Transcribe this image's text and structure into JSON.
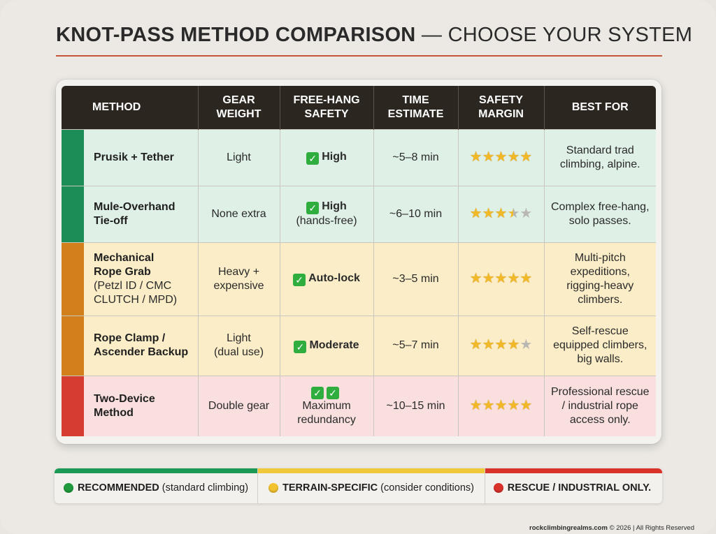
{
  "title": {
    "bold": "KNOT-PASS METHOD COMPARISON",
    "separator": " — ",
    "light": "CHOOSE YOUR SYSTEM"
  },
  "headers": {
    "method": "METHOD",
    "gear_weight_1": "GEAR",
    "gear_weight_2": "WEIGHT",
    "free_hang_1": "FREE-HANG",
    "free_hang_2": "SAFETY",
    "time_1": "TIME",
    "time_2": "ESTIMATE",
    "safety_margin_1": "SAFETY",
    "safety_margin_2": "MARGIN",
    "best_for": "BEST FOR"
  },
  "rows": [
    {
      "name": "Prusik + Tether",
      "name2": "",
      "sub": "",
      "gear": "Light",
      "gear2": "",
      "check_count": 1,
      "safety": "High",
      "safety2": "",
      "time": "~5–8 min",
      "stars": 5,
      "best1": "Standard trad",
      "best2": "climbing, alpine.",
      "best3": ""
    },
    {
      "name": "Mule-Overhand",
      "name2": "Tie-off",
      "sub": "",
      "gear": "None extra",
      "gear2": "",
      "check_count": 1,
      "safety": "High",
      "safety2": "(hands-free)",
      "time": "~6–10 min",
      "stars": 3.5,
      "best1": "Complex free-hang,",
      "best2": "solo passes.",
      "best3": ""
    },
    {
      "name": "Mechanical",
      "name2": "Rope Grab",
      "sub": "(Petzl ID / CMC",
      "sub2": "CLUTCH / MPD)",
      "gear": "Heavy +",
      "gear2": "expensive",
      "check_count": 1,
      "safety": "Auto-lock",
      "safety2": "",
      "time": "~3–5 min",
      "stars": 5,
      "best1": "Multi-pitch",
      "best2": "expeditions,",
      "best3": "rigging-heavy",
      "best4": "climbers."
    },
    {
      "name": "Rope Clamp /",
      "name2": "Ascender Backup",
      "sub": "",
      "gear": "Light",
      "gear2": "(dual use)",
      "check_count": 1,
      "safety": "Moderate",
      "safety2": "",
      "time": "~5–7 min",
      "stars": 4,
      "best1": "Self-rescue",
      "best2": "equipped climbers,",
      "best3": "big walls."
    },
    {
      "name": "Two-Device",
      "name2": "Method",
      "sub": "",
      "gear": "Double gear",
      "gear2": "",
      "check_count": 2,
      "safety": "Maximum",
      "safety2": "redundancy",
      "time": "~10–15 min",
      "stars": 5,
      "best1": "Professional rescue",
      "best2": "/ industrial rope",
      "best3": "access only."
    }
  ],
  "legend": [
    {
      "label": "RECOMMENDED",
      "desc": "(standard climbing)",
      "color": "#1f9a3c"
    },
    {
      "label": "TERRAIN-SPECIFIC",
      "desc": "(consider conditions)",
      "color": "#f2c230"
    },
    {
      "label": "RESCUE / INDUSTRIAL ONLY.",
      "desc": "",
      "color": "#d8322a"
    }
  ],
  "footer": {
    "site": "rockclimbingrealms.com",
    "rest": " © 2026 | All Rights Reserved"
  },
  "colors": {
    "green": "#1d8d57",
    "amber": "#d2801b",
    "red": "#d63d30",
    "header": "#2b2620",
    "title_rule": "#c8553a"
  }
}
